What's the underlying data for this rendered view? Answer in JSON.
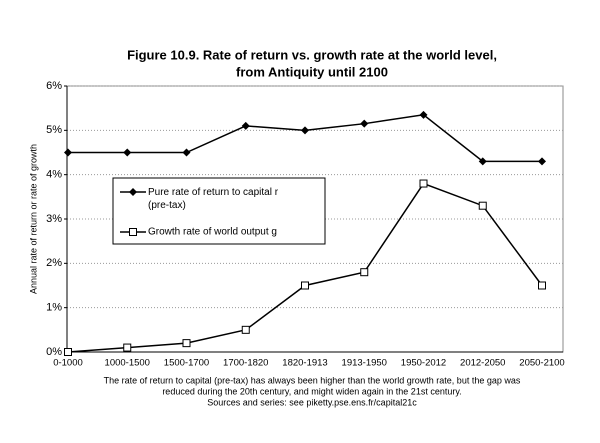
{
  "chart_data": {
    "type": "line",
    "title": [
      "Figure 10.9. Rate of return vs. growth rate at the world level,",
      "from Antiquity until 2100"
    ],
    "y_label": "Annual rate of return or rate of growth",
    "categories": [
      "0-1000",
      "1000-1500",
      "1500-1700",
      "1700-1820",
      "1820-1913",
      "1913-1950",
      "1950-2012",
      "2012-2050",
      "2050-2100"
    ],
    "series": [
      {
        "name": "Pure rate of return to capital r (pre-tax)",
        "color": "#000000",
        "marker": "diamond",
        "values": [
          4.5,
          4.5,
          4.5,
          5.1,
          5.0,
          5.15,
          5.35,
          4.3,
          4.3
        ]
      },
      {
        "name": "Growth rate of world output g",
        "color": "#000000",
        "marker": "square",
        "values": [
          0,
          0.1,
          0.2,
          0.5,
          1.5,
          1.8,
          3.8,
          3.3,
          1.5
        ]
      }
    ],
    "ylim": [
      0,
      6
    ],
    "yticks": [
      {
        "value": 0,
        "label": "0%"
      },
      {
        "value": 1,
        "label": "1%"
      },
      {
        "value": 2,
        "label": "2%"
      },
      {
        "value": 3,
        "label": "3%"
      },
      {
        "value": 4,
        "label": "4%"
      },
      {
        "value": 5,
        "label": "5%"
      },
      {
        "value": 6,
        "label": "6%"
      }
    ],
    "grid": true,
    "note": [
      "The rate of return to capital (pre-tax) has always been higher than the world growth rate, but the gap was",
      "reduced during the 20th century, and might widen again in the 21st century.",
      "Sources and series: see piketty.pse.ens.fr/capital21c"
    ]
  }
}
